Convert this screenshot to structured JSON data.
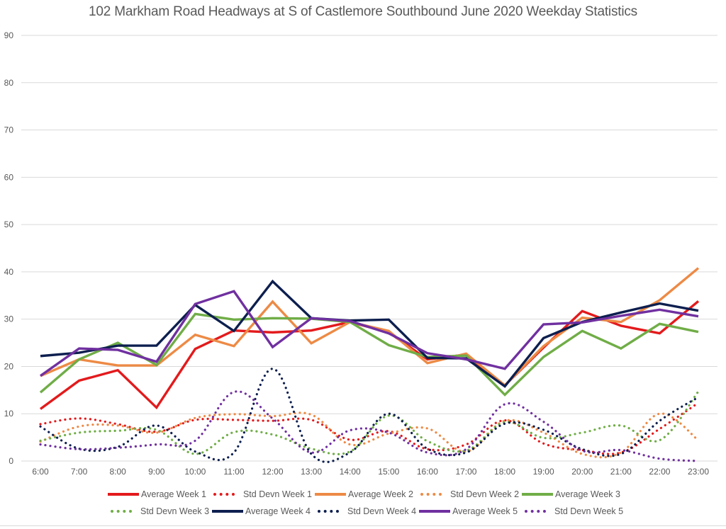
{
  "chart_data": {
    "type": "line",
    "title": "102 Markham Road Headways at S of Castlemore Southbound June 2020 Weekday Statistics",
    "xlabel": "",
    "ylabel": "",
    "ylim": [
      0,
      90
    ],
    "yticks": [
      0,
      10,
      20,
      30,
      40,
      50,
      60,
      70,
      80,
      90
    ],
    "grid": true,
    "legend_position": "bottom",
    "categories": [
      "6:00",
      "7:00",
      "8:00",
      "9:00",
      "10:00",
      "11:00",
      "12:00",
      "13:00",
      "14:00",
      "15:00",
      "16:00",
      "17:00",
      "18:00",
      "19:00",
      "20:00",
      "21:00",
      "22:00",
      "23:00"
    ],
    "series": [
      {
        "name": "Average Week 1",
        "style": "solid",
        "color": "#e31a1c",
        "values": [
          11,
          17,
          19.2,
          11.3,
          23.7,
          27.6,
          27.2,
          27.6,
          29.4,
          27.2,
          21.5,
          22.5,
          16,
          24,
          31.7,
          28.6,
          27,
          33.8
        ]
      },
      {
        "name": "Std Devn Week 1",
        "style": "dotted",
        "color": "#e31a1c",
        "values": [
          7.8,
          9,
          7.8,
          6.2,
          8.7,
          8.7,
          8.5,
          8.7,
          4.5,
          6.3,
          2.5,
          3.5,
          8.6,
          3.7,
          2.3,
          1.8,
          6.8,
          12.3
        ]
      },
      {
        "name": "Average Week 2",
        "style": "solid",
        "color": "#ed8a45",
        "values": [
          18,
          21.5,
          20.2,
          20.2,
          26.7,
          24.3,
          33.7,
          24.9,
          29.4,
          27.5,
          20.7,
          22.7,
          16,
          24.3,
          30.3,
          29.4,
          34,
          40.8
        ]
      },
      {
        "name": "Std Devn Week 2",
        "style": "dotted",
        "color": "#ed8a45",
        "values": [
          4.1,
          7.3,
          7.5,
          6,
          9.1,
          9.9,
          9.5,
          9.8,
          3.5,
          5.8,
          6.9,
          2,
          8.5,
          6,
          1.5,
          1.8,
          10,
          4.4
        ]
      },
      {
        "name": "Average Week 3",
        "style": "solid",
        "color": "#70ad47",
        "values": [
          14.5,
          21.5,
          25,
          20.3,
          31.1,
          29.9,
          30.2,
          30.1,
          29.4,
          24.5,
          22,
          22.3,
          14,
          22,
          27.5,
          23.8,
          29,
          27.3
        ]
      },
      {
        "name": "Std Devn Week 3",
        "style": "dotted",
        "color": "#70ad47",
        "values": [
          4.3,
          6,
          6.4,
          6.6,
          1.5,
          6.1,
          5.6,
          2.6,
          2,
          9.6,
          4.2,
          2.2,
          8.2,
          4.9,
          6,
          7.5,
          4.4,
          14.7
        ]
      },
      {
        "name": "Average Week 4",
        "style": "solid",
        "color": "#0d1f4f",
        "values": [
          22.2,
          22.9,
          24.4,
          24.4,
          33,
          27.5,
          38,
          30.2,
          29.7,
          29.9,
          21.8,
          21.7,
          15.8,
          26,
          29.4,
          31.4,
          33.3,
          31.8
        ]
      },
      {
        "name": "Std Devn Week 4",
        "style": "dotted",
        "color": "#0d1f4f",
        "values": [
          7.3,
          2.6,
          3,
          7.5,
          2,
          1.8,
          19.5,
          1.5,
          1.8,
          10,
          2.6,
          1.8,
          7.9,
          6.6,
          2.5,
          1.5,
          8.5,
          13.5
        ]
      },
      {
        "name": "Average Week 5",
        "style": "solid",
        "color": "#7030a0",
        "values": [
          18,
          23.8,
          23.5,
          21,
          33.2,
          35.9,
          24.1,
          30.2,
          29.6,
          27,
          22.8,
          21.5,
          19.5,
          28.9,
          29.3,
          30.7,
          32,
          30.6
        ]
      },
      {
        "name": "Std Devn Week 5",
        "style": "dotted",
        "color": "#7030a0",
        "values": [
          3.5,
          2.5,
          2.8,
          3.5,
          4.3,
          14.6,
          9,
          1.8,
          6.5,
          6,
          1.8,
          2.5,
          12,
          8.3,
          2.2,
          2.3,
          0.5,
          0
        ]
      }
    ]
  }
}
